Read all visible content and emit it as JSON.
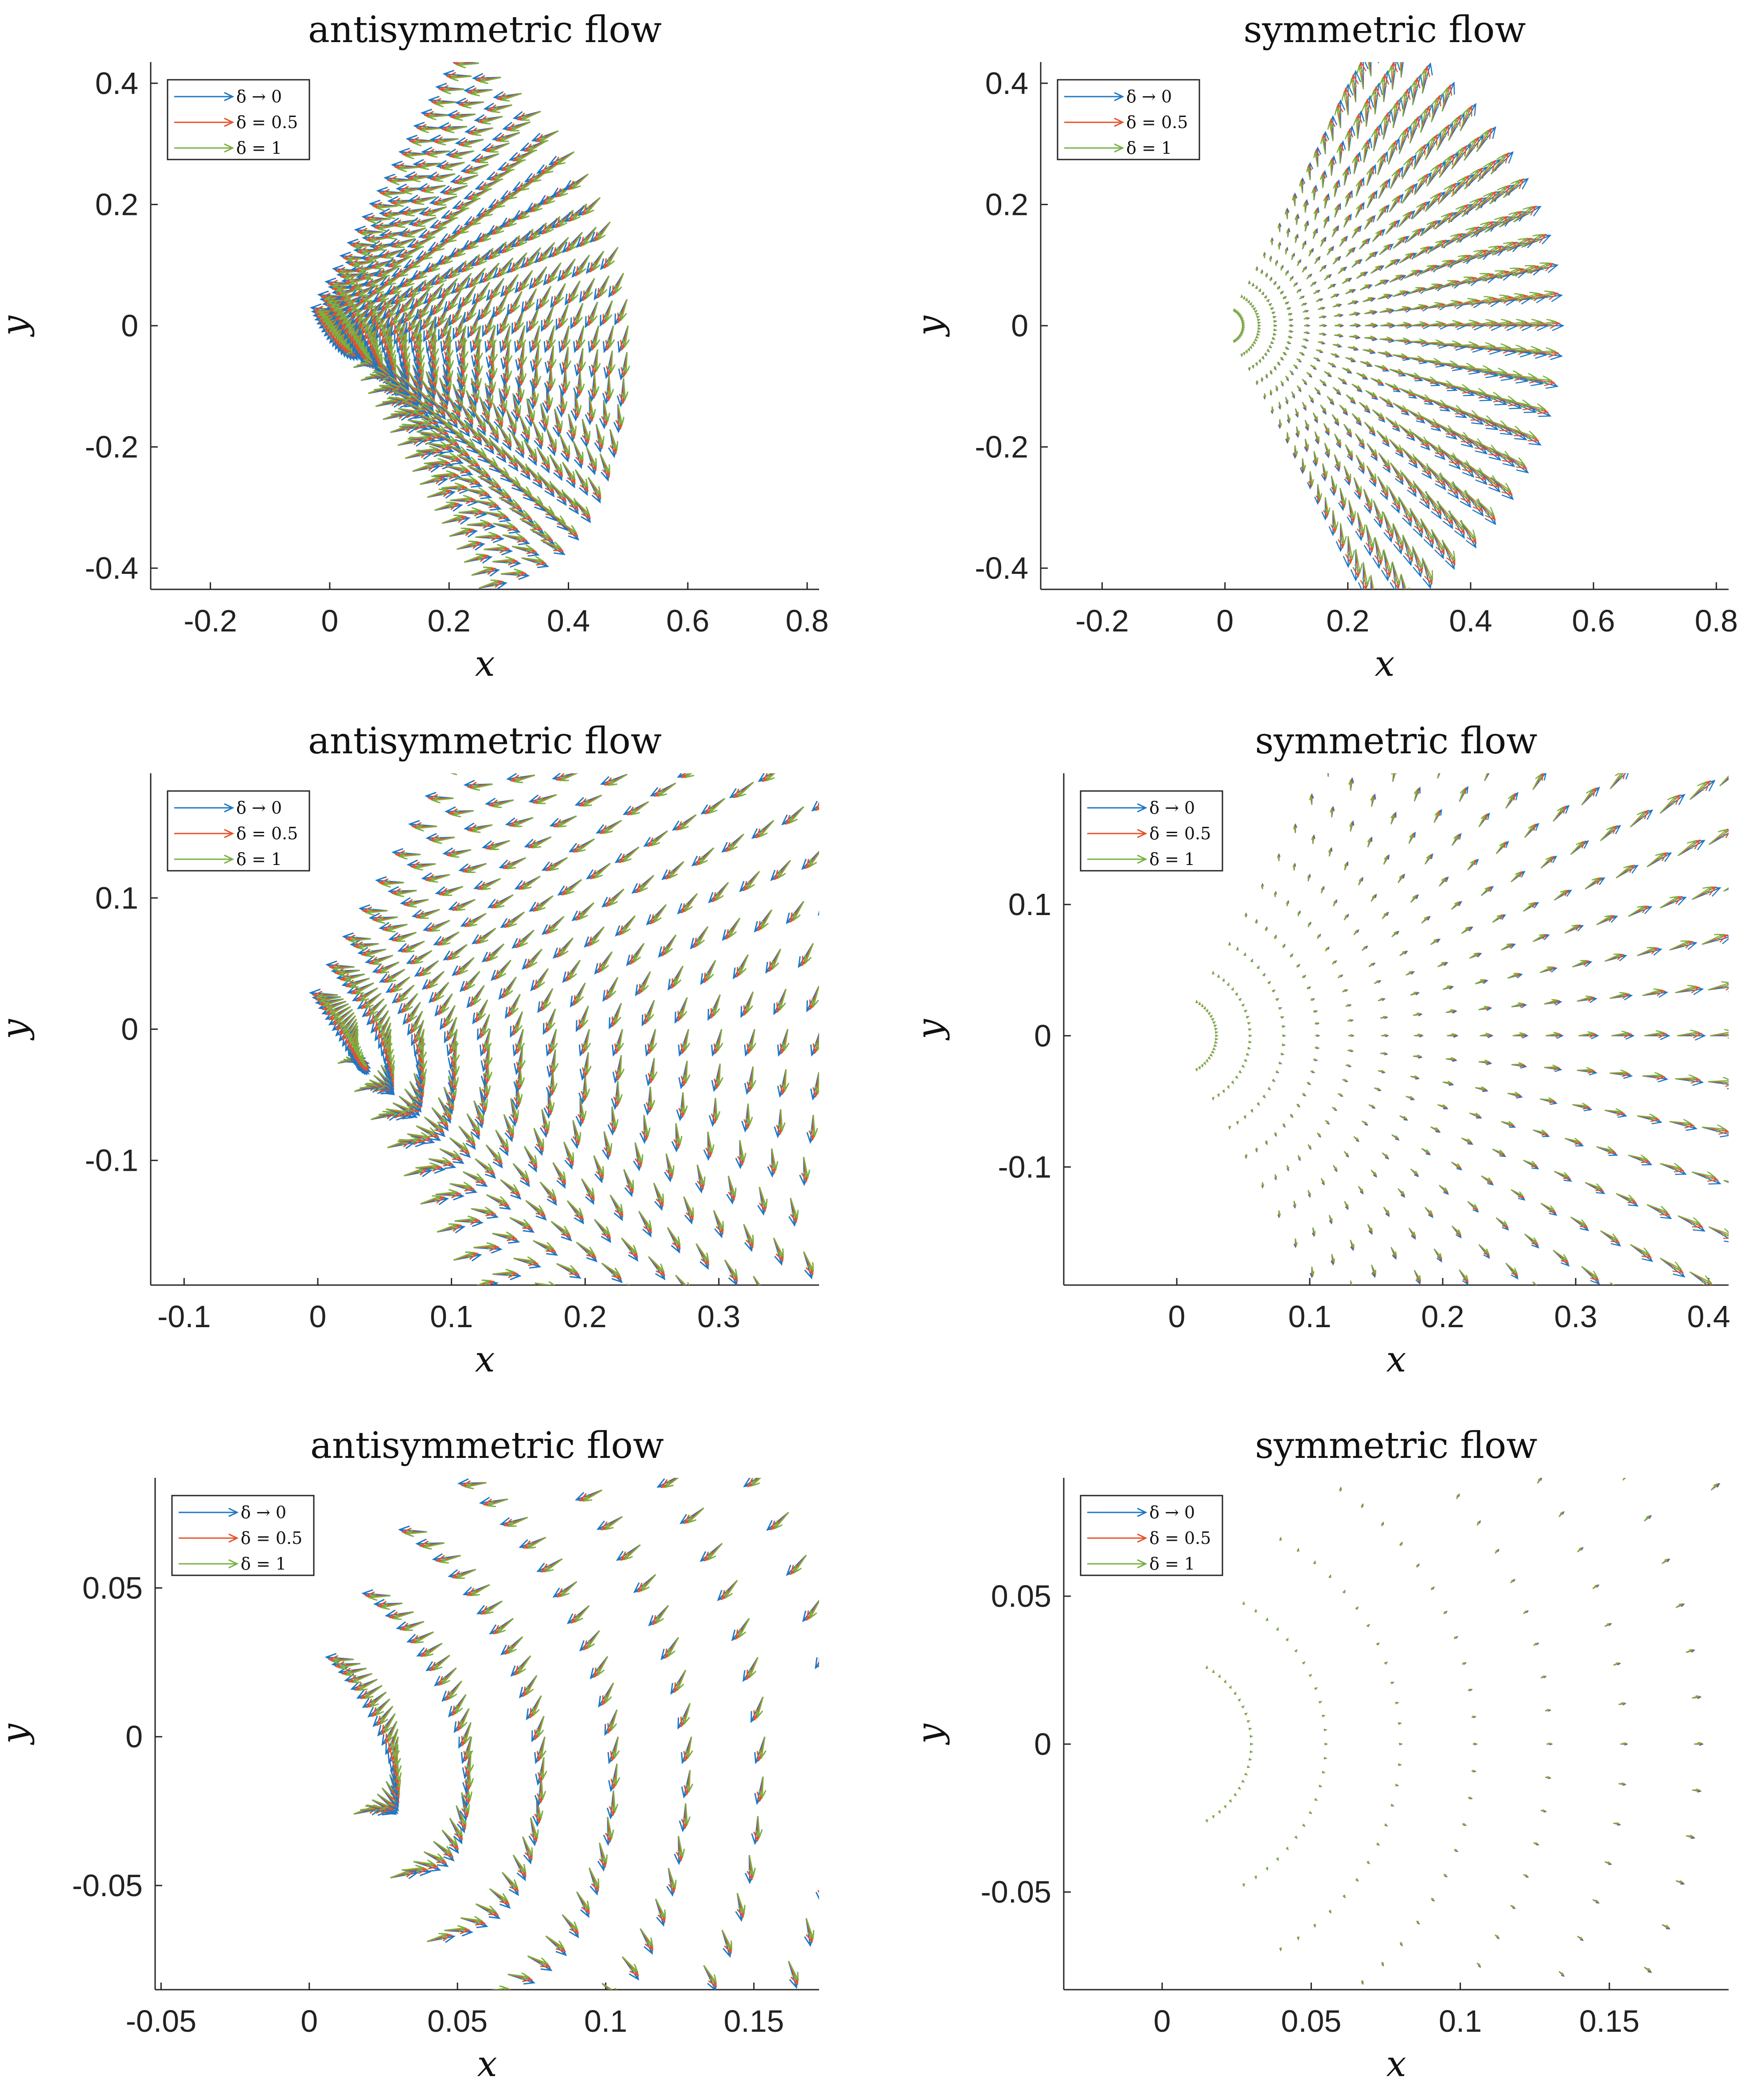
{
  "legend_labels": [
    "δ → 0",
    "δ = 0.5",
    "δ = 1"
  ],
  "series_colors": [
    "#1f77c4",
    "#e4532a",
    "#79b040"
  ],
  "chart_data": [
    {
      "type": "quiver",
      "title": "antisymmetric flow",
      "xlabel": "x",
      "ylabel": "y",
      "flow": "antisymmetric",
      "xlim": [
        -0.3,
        0.82
      ],
      "ylim": [
        -0.435,
        0.435
      ],
      "xticks": [
        "-0.2",
        "0",
        "0.2",
        "0.4",
        "0.6",
        "0.8"
      ],
      "yticks": [
        "-0.4",
        "-0.2",
        "0",
        "0.2",
        "0.4"
      ],
      "r_range": [
        0.03,
        0.5
      ],
      "legend_location": "top-left",
      "series": [
        {
          "name": "δ → 0"
        },
        {
          "name": "δ = 0.5"
        },
        {
          "name": "δ = 1"
        }
      ]
    },
    {
      "type": "quiver",
      "title": "symmetric flow",
      "xlabel": "x",
      "ylabel": "y",
      "flow": "symmetric",
      "xlim": [
        -0.3,
        0.82
      ],
      "ylim": [
        -0.435,
        0.435
      ],
      "xticks": [
        "-0.2",
        "0",
        "0.2",
        "0.4",
        "0.6",
        "0.8"
      ],
      "yticks": [
        "-0.4",
        "-0.2",
        "0",
        "0.2",
        "0.4"
      ],
      "r_range": [
        0.03,
        0.5
      ],
      "legend_location": "top-left",
      "series": [
        {
          "name": "δ → 0"
        },
        {
          "name": "δ = 0.5"
        },
        {
          "name": "δ = 1"
        }
      ]
    },
    {
      "type": "quiver",
      "title": "antisymmetric flow",
      "xlabel": "x",
      "ylabel": "y",
      "flow": "antisymmetric",
      "xlim": [
        -0.125,
        0.375
      ],
      "ylim": [
        -0.195,
        0.195
      ],
      "xticks": [
        "-0.1",
        "0",
        "0.1",
        "0.2",
        "0.3"
      ],
      "yticks": [
        "-0.1",
        "0",
        "0.1"
      ],
      "r_range": [
        0.03,
        0.5
      ],
      "legend_location": "top-left",
      "series": [
        {
          "name": "δ → 0"
        },
        {
          "name": "δ = 0.5"
        },
        {
          "name": "δ = 1"
        }
      ]
    },
    {
      "type": "quiver",
      "title": "symmetric flow",
      "xlabel": "x",
      "ylabel": "y",
      "flow": "symmetric",
      "xlim": [
        -0.085,
        0.415
      ],
      "ylim": [
        -0.19,
        0.2
      ],
      "xticks": [
        "0",
        "0.1",
        "0.2",
        "0.3",
        "0.4"
      ],
      "yticks": [
        "-0.1",
        "0",
        "0.1"
      ],
      "r_range": [
        0.03,
        0.5
      ],
      "legend_location": "top-left",
      "series": [
        {
          "name": "δ → 0"
        },
        {
          "name": "δ = 0.5"
        },
        {
          "name": "δ = 1"
        }
      ]
    },
    {
      "type": "quiver",
      "title": "antisymmetric flow",
      "xlabel": "x",
      "ylabel": "y",
      "flow": "antisymmetric",
      "xlim": [
        -0.052,
        0.172
      ],
      "ylim": [
        -0.085,
        0.087
      ],
      "xticks": [
        "-0.05",
        "0",
        "0.05",
        "0.1",
        "0.15"
      ],
      "yticks": [
        "-0.05",
        "0",
        "0.05"
      ],
      "r_range": [
        0.03,
        0.5
      ],
      "legend_location": "top-left",
      "series": [
        {
          "name": "δ → 0"
        },
        {
          "name": "δ = 0.5"
        },
        {
          "name": "δ = 1"
        }
      ]
    },
    {
      "type": "quiver",
      "title": "symmetric flow",
      "xlabel": "x",
      "ylabel": "y",
      "flow": "symmetric",
      "xlim": [
        -0.033,
        0.19
      ],
      "ylim": [
        -0.083,
        0.09
      ],
      "xticks": [
        "0",
        "0.05",
        "0.1",
        "0.15"
      ],
      "yticks": [
        "-0.05",
        "0",
        "0.05"
      ],
      "r_range": [
        0.03,
        0.5
      ],
      "legend_location": "top-left",
      "series": [
        {
          "name": "δ → 0"
        },
        {
          "name": "δ = 0.5"
        },
        {
          "name": "δ = 1"
        }
      ]
    }
  ]
}
